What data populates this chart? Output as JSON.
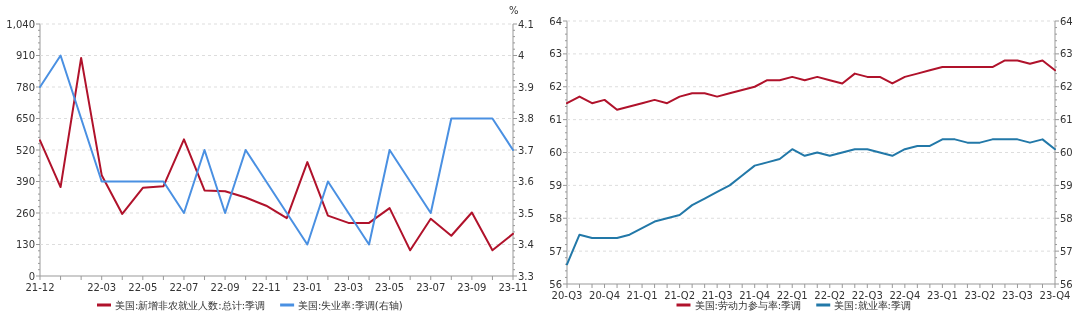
{
  "chart_data": [
    {
      "type": "line",
      "categories": [
        "21-12",
        null,
        null,
        "22-03",
        null,
        "22-05",
        null,
        "22-07",
        null,
        "22-09",
        null,
        "22-11",
        null,
        "23-01",
        null,
        "23-03",
        null,
        "23-05",
        null,
        "23-07",
        null,
        "23-09",
        null,
        "23-11"
      ],
      "series": [
        {
          "name": "美国:新增非农就业人数:总计:季调",
          "color": "#b0122b",
          "values": [
            560,
            367,
            900,
            416,
            256,
            364,
            370,
            564,
            353,
            350,
            324,
            290,
            239,
            470,
            249,
            219,
            219,
            280,
            106,
            236,
            166,
            262,
            106,
            174
          ]
        },
        {
          "name": "美国:失业率:季调(右轴)",
          "color": "#4a90e2",
          "axis": "y2",
          "values": [
            3.9,
            4.0,
            3.8,
            3.6,
            3.6,
            3.6,
            3.6,
            3.5,
            3.7,
            3.5,
            3.7,
            3.6,
            3.5,
            3.4,
            3.6,
            3.5,
            3.4,
            3.7,
            3.6,
            3.5,
            3.8,
            3.8,
            3.8,
            3.7
          ]
        }
      ],
      "ylim": [
        0,
        1040
      ],
      "yticks": [
        0,
        130,
        260,
        390,
        520,
        650,
        780,
        910,
        {
          "value": 1040,
          "label": "1,040"
        }
      ],
      "y2lim": [
        3.3,
        4.1
      ],
      "y2ticks": [
        3.3,
        3.4,
        3.5,
        3.6,
        3.7,
        3.8,
        3.9,
        4,
        4.1
      ],
      "y2label": "%",
      "grid": "y",
      "legend": "bottom"
    },
    {
      "type": "line",
      "categories": [
        "20-Q3",
        null,
        null,
        "20-Q4",
        null,
        null,
        "21-Q1",
        null,
        null,
        "21-Q2",
        null,
        null,
        "21-Q3",
        null,
        null,
        "21-Q4",
        null,
        null,
        "22-Q1",
        null,
        null,
        "22-Q2",
        null,
        null,
        "22-Q3",
        null,
        null,
        "22-Q4",
        null,
        null,
        "23-Q1",
        null,
        null,
        "23-Q2",
        null,
        null,
        "23-Q3",
        null,
        null,
        "23-Q4"
      ],
      "series": [
        {
          "name": "美国:劳动力参与率:季调",
          "color": "#b0122b",
          "values": [
            61.5,
            61.7,
            61.5,
            61.6,
            61.3,
            61.4,
            61.5,
            61.6,
            61.5,
            61.7,
            61.8,
            61.8,
            61.7,
            61.8,
            61.9,
            62.0,
            62.2,
            62.2,
            62.3,
            62.2,
            62.3,
            62.2,
            62.1,
            62.4,
            62.3,
            62.3,
            62.1,
            62.3,
            62.4,
            62.5,
            62.6,
            62.6,
            62.6,
            62.6,
            62.6,
            62.8,
            62.8,
            62.7,
            62.8,
            62.5
          ]
        },
        {
          "name": "美国:就业率:季调",
          "color": "#2278a8",
          "values": [
            56.6,
            57.5,
            57.4,
            57.4,
            57.4,
            57.5,
            57.7,
            57.9,
            58.0,
            58.1,
            58.4,
            58.6,
            58.8,
            59.0,
            59.3,
            59.6,
            59.7,
            59.8,
            60.1,
            59.9,
            60.0,
            59.9,
            60.0,
            60.1,
            60.1,
            60.0,
            59.9,
            60.1,
            60.2,
            60.2,
            60.4,
            60.4,
            60.3,
            60.3,
            60.4,
            60.4,
            60.4,
            60.3,
            60.4,
            60.1
          ]
        }
      ],
      "ylim": [
        56,
        64
      ],
      "yticks": [
        56,
        57,
        58,
        59,
        60,
        61,
        62,
        63,
        64
      ],
      "y2lim": [
        56,
        64
      ],
      "y2ticks": [
        56,
        57,
        58,
        59,
        60,
        61,
        62,
        63,
        64
      ],
      "grid": "y",
      "legend": "bottom"
    }
  ]
}
